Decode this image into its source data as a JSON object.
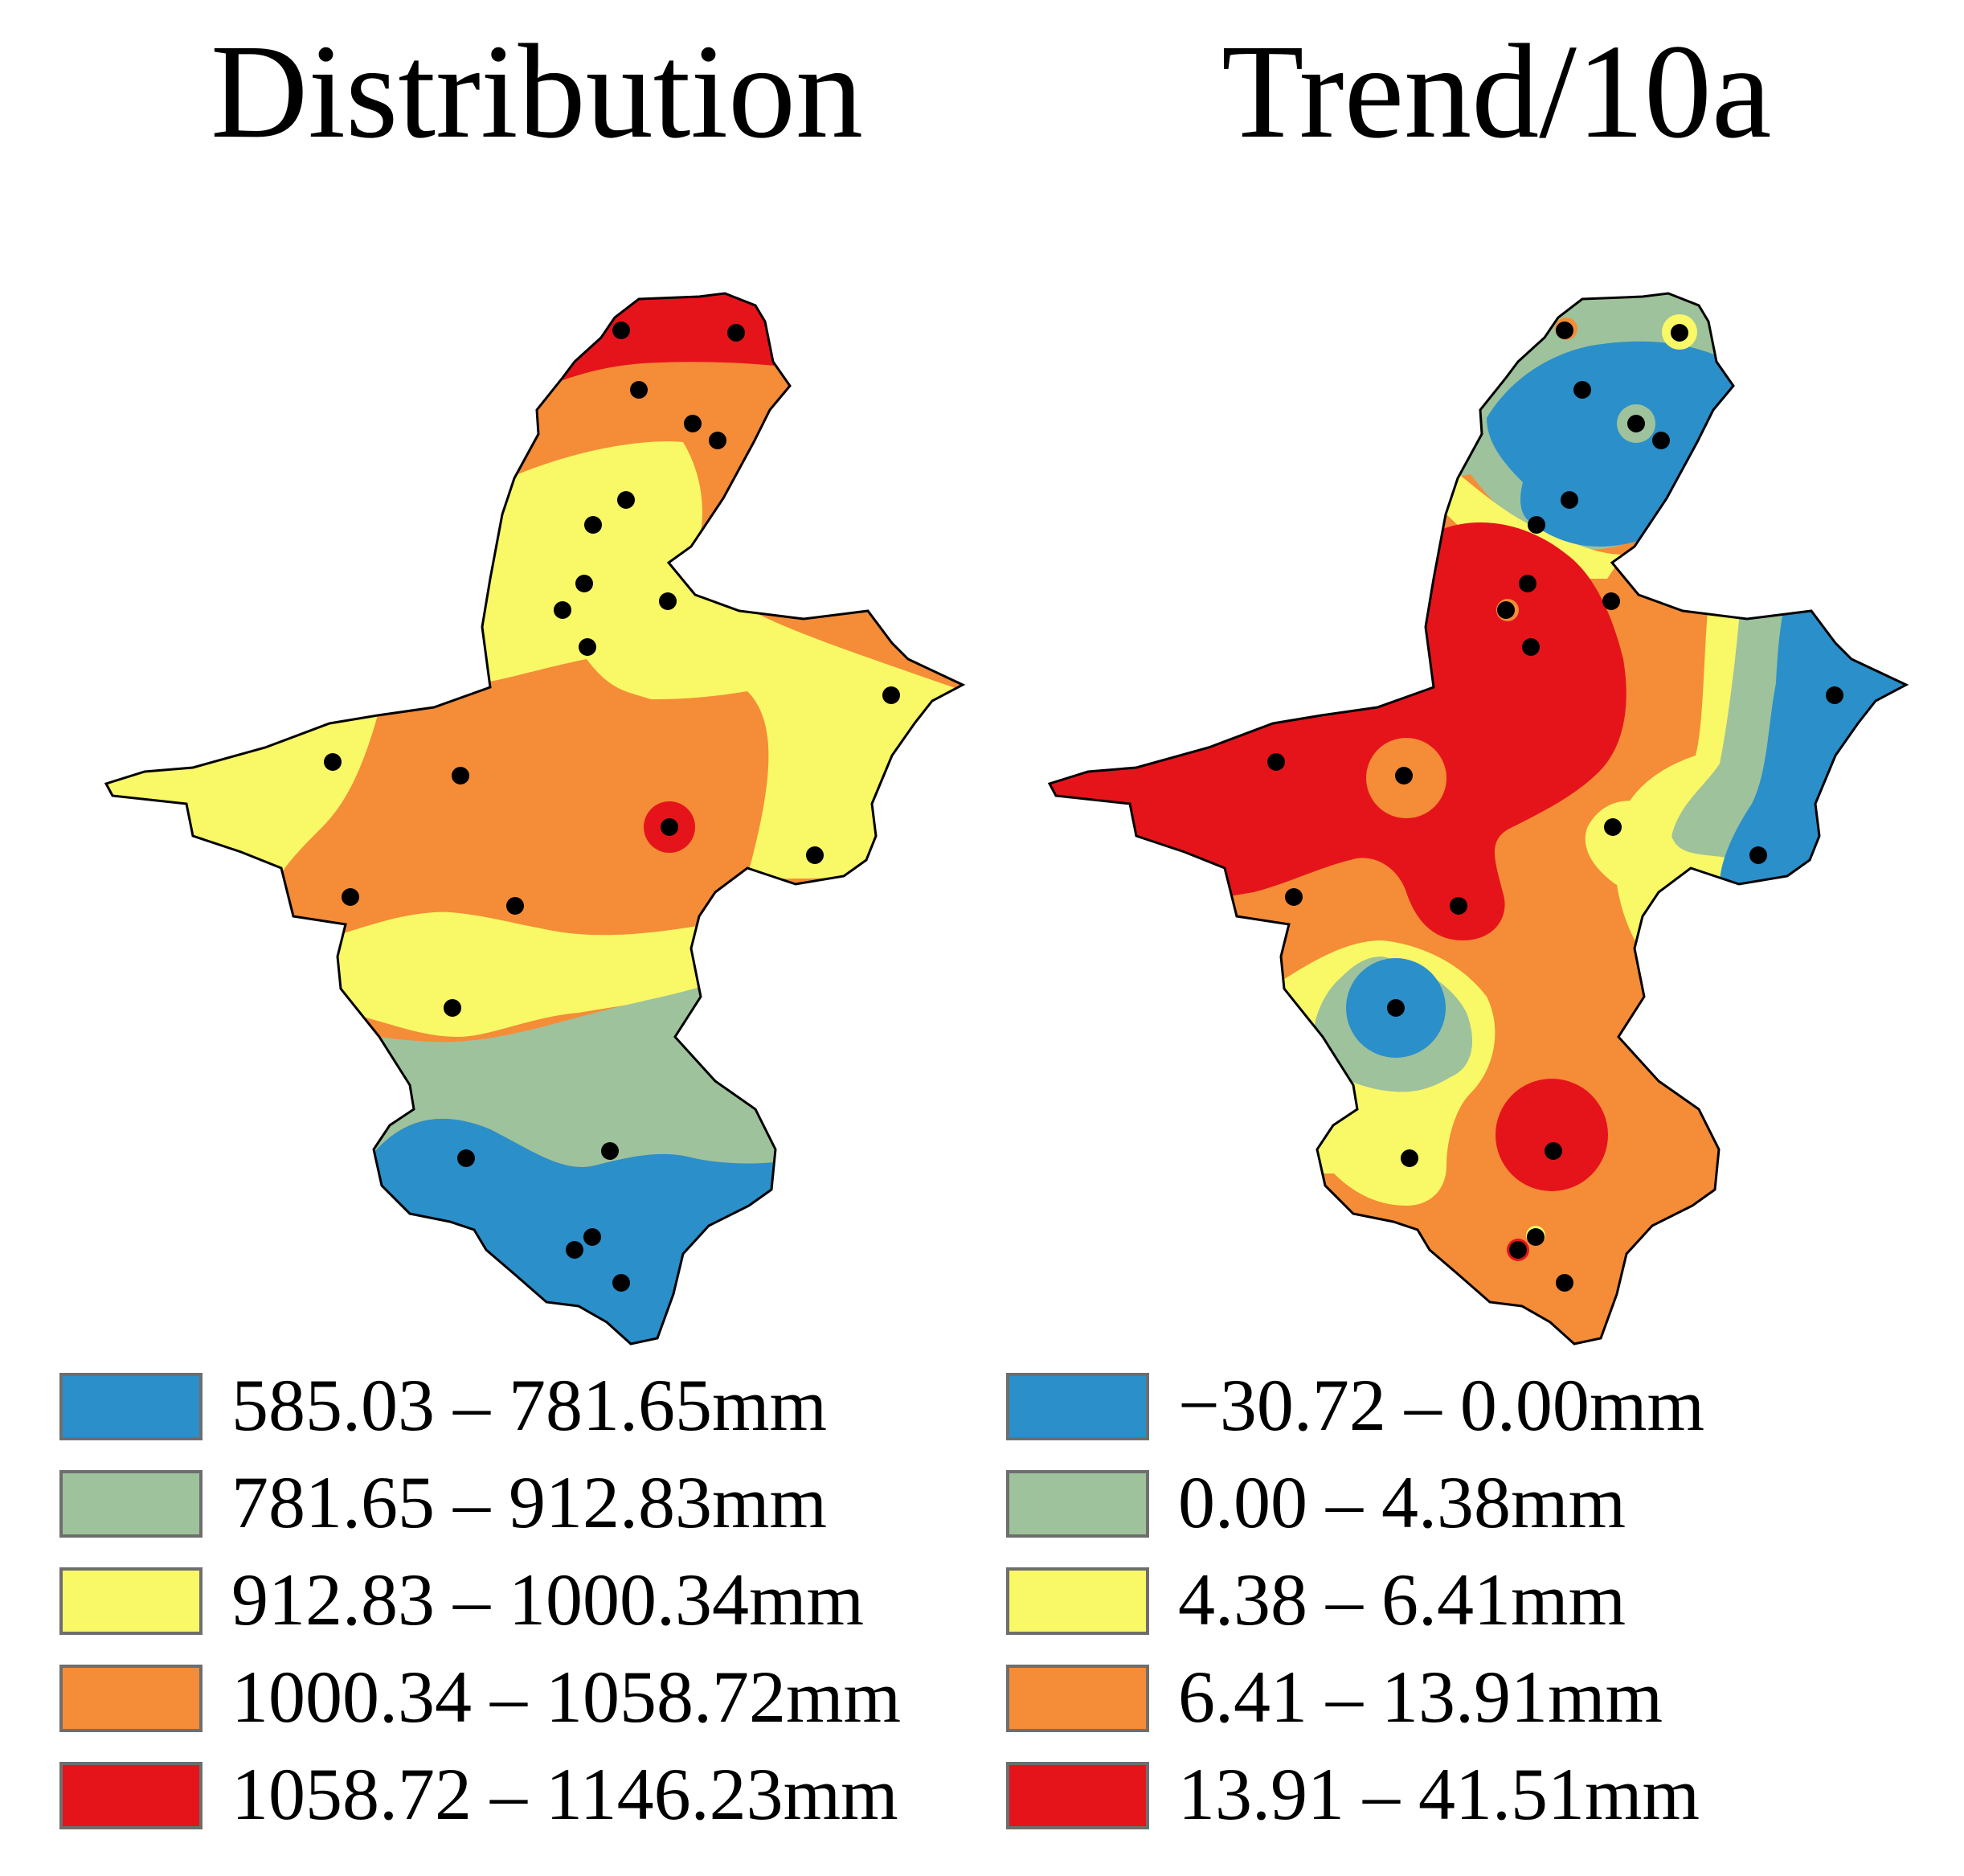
{
  "panels": [
    {
      "title": "Distribution",
      "legend": [
        {
          "label": "585.03 – 781.65mm",
          "color": "#2b8fca"
        },
        {
          "label": "781.65 – 912.83mm",
          "color": "#9ec29b"
        },
        {
          "label": "912.83 – 1000.34mm",
          "color": "#f9f867"
        },
        {
          "label": "1000.34 – 1058.72mm",
          "color": "#f58c37"
        },
        {
          "label": "1058.72 – 1146.23mm",
          "color": "#e5141b"
        }
      ]
    },
    {
      "title": "Trend/10a",
      "legend": [
        {
          "label": "−30.72 – 0.00mm",
          "color": "#2b8fca"
        },
        {
          "label": "0.00 – 4.38mm",
          "color": "#9ec29b"
        },
        {
          "label": "4.38 – 6.41mm",
          "color": "#f9f867"
        },
        {
          "label": "6.41 – 13.91mm",
          "color": "#f58c37"
        },
        {
          "label": "13.91 – 41.51mm",
          "color": "#e5141b"
        }
      ]
    }
  ],
  "station_marker": {
    "color": "#000000",
    "count": 25
  }
}
